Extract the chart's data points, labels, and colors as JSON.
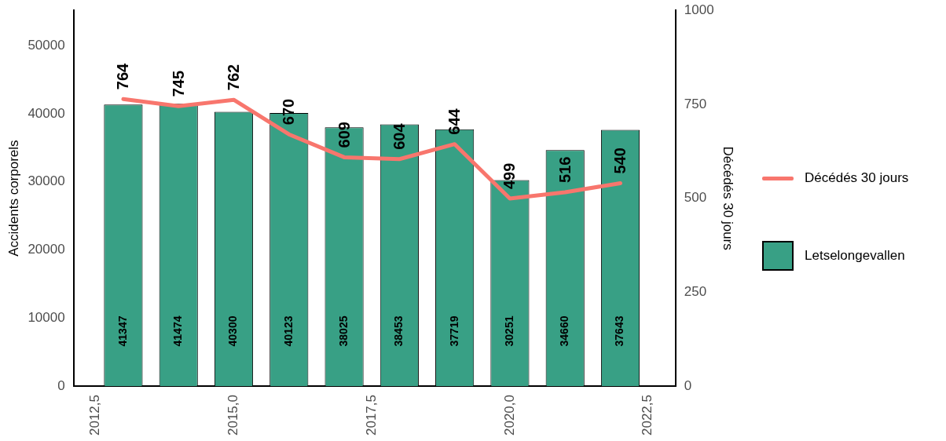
{
  "chart_data": {
    "type": "bar",
    "x": [
      2013,
      2014,
      2015,
      2016,
      2017,
      2018,
      2019,
      2020,
      2021,
      2022
    ],
    "series": [
      {
        "name": "Décédés 30 jours",
        "type": "line",
        "axis": "y2",
        "color": "#f8766d",
        "values": [
          764,
          745,
          762,
          670,
          609,
          604,
          644,
          499,
          516,
          540
        ]
      },
      {
        "name": "Letselongevallen",
        "color": "#38a085",
        "values": [
          41347,
          41474,
          40300,
          40123,
          38025,
          38453,
          37719,
          30251,
          34660,
          37643
        ]
      }
    ],
    "ylabel": "Accidents corporels",
    "y2label": "Décédés 30 jours",
    "xlim": [
      2012.1,
      2023.0
    ],
    "xticks": [
      {
        "value": 2012.5,
        "label": "2012,5"
      },
      {
        "value": 2015,
        "label": "2015,0"
      },
      {
        "value": 2017.5,
        "label": "2017,5"
      },
      {
        "value": 2020,
        "label": "2020,0"
      },
      {
        "value": 2022.5,
        "label": "2022,5"
      }
    ],
    "ylim": [
      0,
      55200
    ],
    "yticks": [
      0,
      10000,
      20000,
      30000,
      40000,
      50000
    ],
    "y2lim": [
      0,
      1000
    ],
    "y2ticks": [
      0,
      250,
      500,
      750,
      1000
    ],
    "data_labels": true,
    "grid": false,
    "legend": "right",
    "marker": "none",
    "line_style": "solid"
  }
}
